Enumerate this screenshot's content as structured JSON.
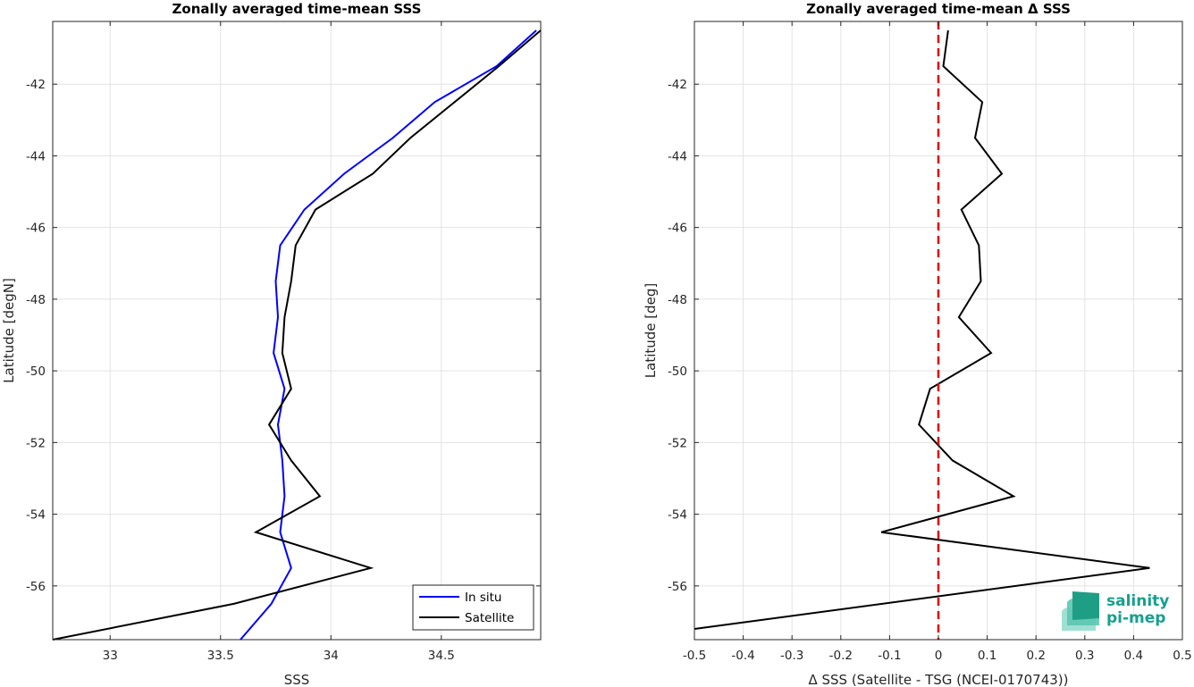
{
  "chart_data": [
    {
      "type": "line",
      "title": "Zonally averaged time-mean SSS",
      "xlabel": "SSS",
      "ylabel": "Latitude [degN]",
      "xlim": [
        32.74,
        34.95
      ],
      "ylim": [
        -57.5,
        -40.25
      ],
      "xticks": [
        33,
        33.5,
        34,
        34.5
      ],
      "xtick_labels": [
        "33",
        "33.5",
        "34",
        "34.5"
      ],
      "yticks": [
        -56,
        -54,
        -52,
        -50,
        -48,
        -46,
        -44,
        -42
      ],
      "ytick_labels": [
        "-56",
        "-54",
        "-52",
        "-50",
        "-48",
        "-46",
        "-44",
        "-42"
      ],
      "grid": true,
      "legend_position": "bottom-right",
      "series": [
        {
          "name": "In situ",
          "color": "#0000ff",
          "x": [
            34.93,
            34.75,
            34.47,
            34.28,
            34.06,
            33.88,
            33.77,
            33.75,
            33.76,
            33.74,
            33.79,
            33.76,
            33.78,
            33.79,
            33.77,
            33.82,
            33.73,
            33.59
          ],
          "y": [
            -40.5,
            -41.5,
            -42.5,
            -43.5,
            -44.5,
            -45.5,
            -46.5,
            -47.5,
            -48.5,
            -49.5,
            -50.5,
            -51.5,
            -52.5,
            -53.5,
            -54.5,
            -55.5,
            -56.5,
            -57.5
          ]
        },
        {
          "name": "Satellite",
          "color": "#000000",
          "x": [
            34.95,
            34.76,
            34.56,
            34.36,
            34.19,
            33.93,
            33.84,
            33.82,
            33.79,
            33.78,
            33.82,
            33.72,
            33.82,
            33.95,
            33.66,
            34.18,
            33.56,
            32.74
          ],
          "y": [
            -40.5,
            -41.5,
            -42.5,
            -43.5,
            -44.5,
            -45.5,
            -46.5,
            -47.5,
            -48.5,
            -49.5,
            -50.5,
            -51.5,
            -52.5,
            -53.5,
            -54.5,
            -55.5,
            -56.5,
            -57.5
          ]
        }
      ]
    },
    {
      "type": "line",
      "title": "Zonally averaged time-mean Δ SSS",
      "xlabel": "Δ SSS (Satellite - TSG (NCEI-0170743))",
      "ylabel": "Latitude [deg]",
      "xlim": [
        -0.5,
        0.5
      ],
      "ylim": [
        -57.5,
        -40.25
      ],
      "xticks": [
        -0.5,
        -0.4,
        -0.3,
        -0.2,
        -0.1,
        0,
        0.1,
        0.2,
        0.3,
        0.4,
        0.5
      ],
      "xtick_labels": [
        "-0.5",
        "-0.4",
        "-0.3",
        "-0.2",
        "-0.1",
        "0",
        "0.1",
        "0.2",
        "0.3",
        "0.4",
        "0.5"
      ],
      "yticks": [
        -56,
        -54,
        -52,
        -50,
        -48,
        -46,
        -44,
        -42
      ],
      "ytick_labels": [
        "-56",
        "-54",
        "-52",
        "-50",
        "-48",
        "-46",
        "-44",
        "-42"
      ],
      "grid": true,
      "reference_line": {
        "x": 0,
        "color": "#e00000",
        "style": "dashed"
      },
      "series": [
        {
          "color": "#000000",
          "x": [
            0.02,
            0.01,
            0.09,
            0.075,
            0.13,
            0.047,
            0.083,
            0.087,
            0.042,
            0.108,
            -0.017,
            -0.04,
            0.029,
            0.154,
            -0.117,
            0.433,
            -0.5
          ],
          "y": [
            -40.5,
            -41.5,
            -42.5,
            -43.5,
            -44.5,
            -45.5,
            -46.5,
            -47.5,
            -48.5,
            -49.5,
            -50.5,
            -51.5,
            -52.5,
            -53.5,
            -54.5,
            -55.5,
            -57.2
          ]
        }
      ]
    }
  ],
  "logo": {
    "line1": "salinity",
    "line2": "pi-mep"
  }
}
